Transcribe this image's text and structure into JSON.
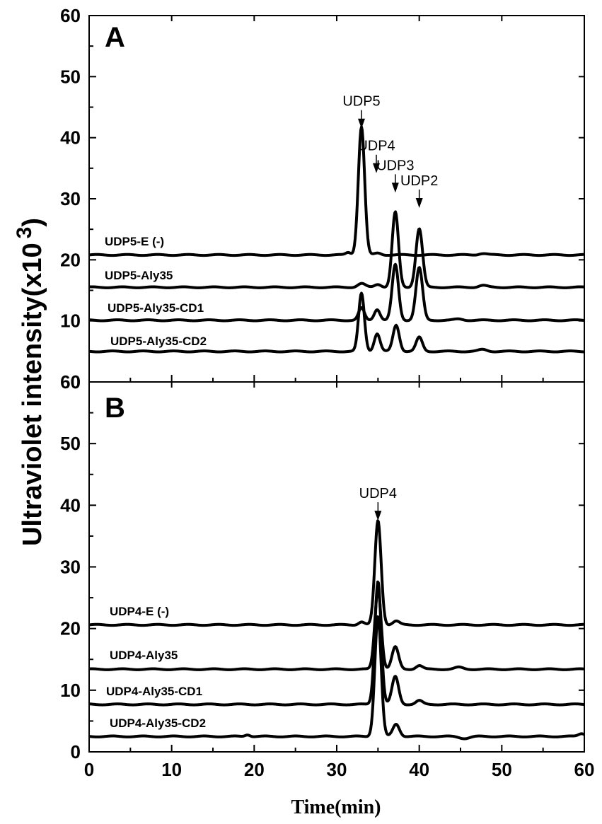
{
  "chart_data": [
    {
      "type": "line",
      "panel": "A",
      "xlim": [
        0,
        60
      ],
      "ylim": [
        0,
        60
      ],
      "x_ticks": [
        "0",
        "10",
        "20",
        "30",
        "40",
        "50",
        "60"
      ],
      "y_ticks": [
        "0",
        "10",
        "20",
        "30",
        "40",
        "50",
        "60"
      ],
      "peak_annotations": [
        {
          "label": "UDP5",
          "x": 33.0,
          "y": 41.5
        },
        {
          "label": "UDP4",
          "x": 34.8,
          "y": 34.2
        },
        {
          "label": "UDP3",
          "x": 37.1,
          "y": 31.0
        },
        {
          "label": "UDP2",
          "x": 40.0,
          "y": 28.5
        }
      ],
      "series": [
        {
          "name": "UDP5-E (-)",
          "baseline": 20.8,
          "peaks": [
            {
              "x": 31.4,
              "h": 0.4,
              "w": 0.3
            },
            {
              "x": 33.0,
              "h": 21.0,
              "w": 0.38
            },
            {
              "x": 35.0,
              "h": 0.3,
              "w": 0.4
            },
            {
              "x": 47.7,
              "h": 0.25,
              "w": 0.5
            }
          ]
        },
        {
          "name": "UDP5-Aly35",
          "baseline": 15.5,
          "peaks": [
            {
              "x": 33.0,
              "h": 0.6,
              "w": 0.45
            },
            {
              "x": 35.0,
              "h": 0.5,
              "w": 0.4
            },
            {
              "x": 37.1,
              "h": 12.3,
              "w": 0.38
            },
            {
              "x": 40.0,
              "h": 9.6,
              "w": 0.4
            },
            {
              "x": 47.7,
              "h": 0.3,
              "w": 0.5
            }
          ]
        },
        {
          "name": "UDP5-Aly35-CD1",
          "baseline": 10.1,
          "peaks": [
            {
              "x": 33.0,
              "h": 2.0,
              "w": 0.35
            },
            {
              "x": 34.9,
              "h": 1.8,
              "w": 0.35
            },
            {
              "x": 37.1,
              "h": 9.1,
              "w": 0.38
            },
            {
              "x": 40.0,
              "h": 8.6,
              "w": 0.4
            },
            {
              "x": 44.8,
              "h": 0.2,
              "w": 0.5
            }
          ]
        },
        {
          "name": "UDP5-Aly35-CD2",
          "baseline": 5.0,
          "peaks": [
            {
              "x": 33.0,
              "h": 9.5,
              "w": 0.35
            },
            {
              "x": 34.9,
              "h": 2.9,
              "w": 0.35
            },
            {
              "x": 37.2,
              "h": 4.3,
              "w": 0.38
            },
            {
              "x": 40.0,
              "h": 2.3,
              "w": 0.38
            },
            {
              "x": 47.7,
              "h": 0.3,
              "w": 0.5
            }
          ]
        }
      ]
    },
    {
      "type": "line",
      "panel": "B",
      "xlim": [
        0,
        60
      ],
      "ylim": [
        0,
        60
      ],
      "x_ticks": [
        "0",
        "10",
        "20",
        "30",
        "40",
        "50",
        "60"
      ],
      "y_ticks": [
        "0",
        "10",
        "20",
        "30",
        "40",
        "50",
        "60"
      ],
      "xlabel": "Time(min)",
      "peak_annotations": [
        {
          "label": "UDP4",
          "x": 35.0,
          "y": 37.5
        }
      ],
      "series": [
        {
          "name": "UDP4-E (-)",
          "baseline": 20.6,
          "peaks": [
            {
              "x": 33.0,
              "h": 0.5,
              "w": 0.35
            },
            {
              "x": 35.0,
              "h": 16.9,
              "w": 0.38
            },
            {
              "x": 37.2,
              "h": 0.6,
              "w": 0.4
            }
          ]
        },
        {
          "name": "UDP4-Aly35",
          "baseline": 13.4,
          "peaks": [
            {
              "x": 35.0,
              "h": 13.0,
              "w": 0.38
            },
            {
              "x": 37.1,
              "h": 3.6,
              "w": 0.4
            },
            {
              "x": 40.0,
              "h": 0.6,
              "w": 0.4
            },
            {
              "x": 44.8,
              "h": 0.3,
              "w": 0.5
            }
          ]
        },
        {
          "name": "UDP4-Aly35-CD1",
          "baseline": 7.7,
          "peaks": [
            {
              "x": 35.0,
              "h": 20.0,
              "w": 0.38
            },
            {
              "x": 37.1,
              "h": 4.5,
              "w": 0.4
            },
            {
              "x": 40.0,
              "h": 0.6,
              "w": 0.4
            }
          ]
        },
        {
          "name": "UDP4-Aly35-CD2",
          "baseline": 2.5,
          "peaks": [
            {
              "x": 19.2,
              "h": 0.3,
              "w": 0.3
            },
            {
              "x": 35.0,
              "h": 19.5,
              "w": 0.38
            },
            {
              "x": 37.2,
              "h": 2.0,
              "w": 0.4
            },
            {
              "x": 45.5,
              "h": -0.3,
              "w": 0.6
            },
            {
              "x": 59.7,
              "h": 0.5,
              "w": 0.4
            }
          ]
        }
      ]
    }
  ],
  "ylabel": {
    "main": "Ultraviolet intensity(x10",
    "exp": "3",
    "close": ")"
  }
}
